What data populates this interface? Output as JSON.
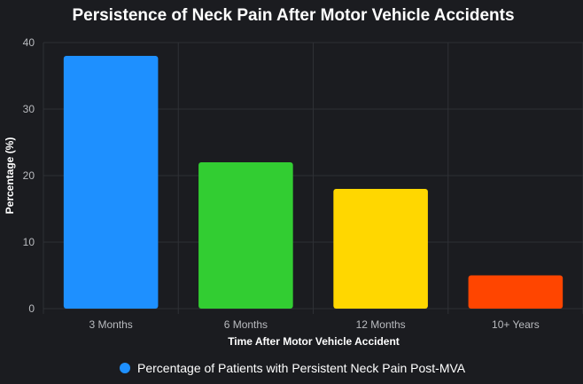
{
  "chart_data": {
    "type": "bar",
    "title": "Persistence of Neck Pain After Motor Vehicle Accidents",
    "xlabel": "Time After Motor Vehicle Accident",
    "ylabel": "Percentage (%)",
    "categories": [
      "3 Months",
      "6 Months",
      "12 Months",
      "10+ Years"
    ],
    "series": [
      {
        "name": "Percentage of Patients with Persistent Neck Pain Post-MVA",
        "values": [
          38,
          22,
          18,
          5
        ]
      }
    ],
    "bar_colors": [
      "#1e90ff",
      "#32cd32",
      "#ffd700",
      "#ff4500"
    ],
    "legend_color": "#1e90ff",
    "ylim": [
      0,
      40
    ],
    "yticks": [
      0,
      10,
      20,
      30,
      40
    ],
    "grid": true,
    "legend_position": "bottom"
  }
}
